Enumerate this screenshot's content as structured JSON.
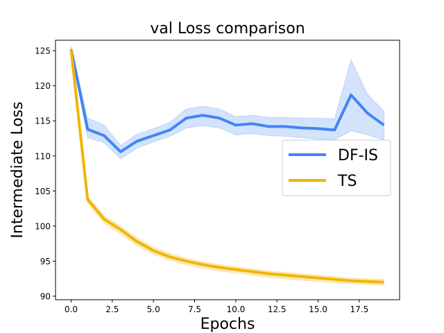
{
  "chart_data": {
    "type": "line",
    "title": "val Loss comparison",
    "xlabel": "Epochs",
    "ylabel": "Intermediate Loss",
    "xlim": [
      -0.95,
      19.95
    ],
    "ylim": [
      89.5,
      126.5
    ],
    "xticks": [
      0,
      2.5,
      5,
      7.5,
      10,
      12.5,
      15,
      17.5
    ],
    "xtick_labels": [
      "0.0",
      "2.5",
      "5.0",
      "7.5",
      "10.0",
      "12.5",
      "15.0",
      "17.5"
    ],
    "yticks": [
      90,
      95,
      100,
      105,
      110,
      115,
      120,
      125
    ],
    "ytick_labels": [
      "90",
      "95",
      "100",
      "105",
      "110",
      "115",
      "120",
      "125"
    ],
    "grid": false,
    "legend": "center-right",
    "x": [
      0,
      1,
      2,
      3,
      4,
      5,
      6,
      7,
      8,
      9,
      10,
      11,
      12,
      13,
      14,
      15,
      16,
      17,
      18,
      19
    ],
    "series": [
      {
        "name": "DF-IS",
        "color": "#4285f4",
        "band_color": "#c6d9fb",
        "values": [
          125.2,
          113.8,
          112.9,
          110.6,
          112.1,
          112.9,
          113.7,
          115.4,
          115.8,
          115.4,
          114.4,
          114.6,
          114.2,
          114.2,
          114.0,
          113.9,
          113.7,
          118.7,
          116.1,
          114.4
        ],
        "upper": [
          125.6,
          115.4,
          114.4,
          111.5,
          113.1,
          113.9,
          114.8,
          116.7,
          117.1,
          116.7,
          115.6,
          115.8,
          115.5,
          115.5,
          115.4,
          115.4,
          115.3,
          123.7,
          118.8,
          116.4
        ],
        "lower": [
          124.8,
          112.6,
          111.9,
          109.6,
          111.1,
          112.0,
          112.8,
          114.0,
          114.3,
          114.0,
          113.0,
          113.2,
          112.9,
          112.8,
          112.6,
          112.4,
          112.3,
          113.6,
          113.0,
          112.3
        ]
      },
      {
        "name": "TS",
        "color": "#f2b406",
        "band_color": "#f9e4a6",
        "values": [
          125.1,
          103.8,
          101.0,
          99.5,
          97.8,
          96.5,
          95.6,
          95.0,
          94.5,
          94.1,
          93.8,
          93.5,
          93.2,
          93.0,
          92.8,
          92.6,
          92.4,
          92.2,
          92.1,
          92.0
        ],
        "upper": [
          125.7,
          104.3,
          101.5,
          100.0,
          98.3,
          97.0,
          96.1,
          95.4,
          94.9,
          94.5,
          94.2,
          93.9,
          93.6,
          93.4,
          93.2,
          93.0,
          92.8,
          92.6,
          92.5,
          92.4
        ],
        "lower": [
          124.5,
          103.3,
          100.4,
          98.9,
          97.2,
          96.0,
          95.1,
          94.5,
          94.0,
          93.6,
          93.3,
          93.0,
          92.7,
          92.5,
          92.3,
          92.1,
          91.9,
          91.8,
          91.7,
          91.6
        ]
      }
    ]
  }
}
